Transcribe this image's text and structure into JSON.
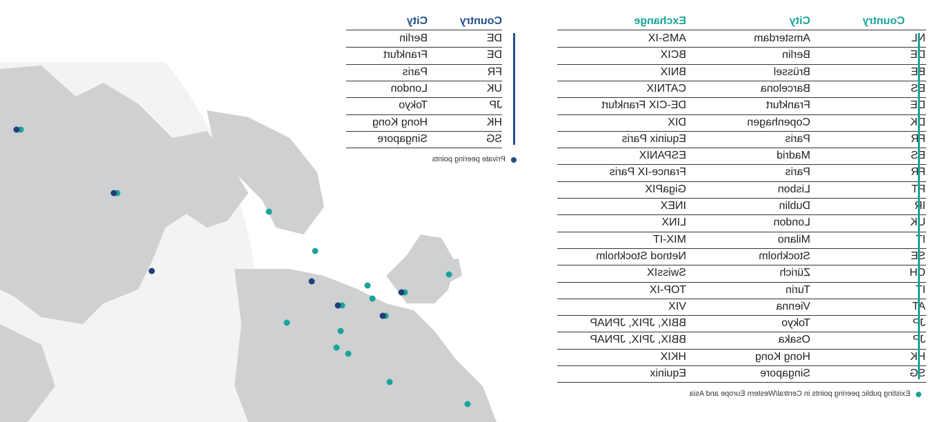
{
  "public_table": {
    "headers": [
      "Country",
      "City",
      "Exchange"
    ],
    "rows": [
      [
        "NL",
        "Amsterdam",
        "AMS-IX"
      ],
      [
        "DE",
        "Berlin",
        "BCIX"
      ],
      [
        "BE",
        "Brüssel",
        "BNIX"
      ],
      [
        "ES",
        "Barcelona",
        "CATNIX"
      ],
      [
        "DE",
        "Frankfurt",
        "DE-CIX Frankfurt"
      ],
      [
        "DK",
        "Copenhagen",
        "DIX"
      ],
      [
        "FR",
        "Paris",
        "Equinix Paris"
      ],
      [
        "ES",
        "Madrid",
        "ESPANIX"
      ],
      [
        "FR",
        "Paris",
        "France-IX Paris"
      ],
      [
        "PT",
        "Lisbon",
        "GigaPIX"
      ],
      [
        "IR",
        "Dublin",
        "INEX"
      ],
      [
        "UK",
        "London",
        "LINX"
      ],
      [
        "IT",
        "Milano",
        "MIX-IT"
      ],
      [
        "SE",
        "Stockholm",
        "Netnod Stockholm"
      ],
      [
        "CH",
        "Zürich",
        "SwissIX"
      ],
      [
        "IT",
        "Turin",
        "TOP-IX"
      ],
      [
        "AT",
        "Vienna",
        "VIX"
      ],
      [
        "JP",
        "Tokyo",
        "BBIX, JPIX, JPNAP"
      ],
      [
        "JP",
        "Osaka",
        "BBIX, JPIX, JPNAP"
      ],
      [
        "HK",
        "Hong Kong",
        "HKIX"
      ],
      [
        "SG",
        "Singapore",
        "Equinix"
      ]
    ],
    "footnote": "Existing public peering points in Central/Western  Europe and Asia"
  },
  "private_table": {
    "headers": [
      "Country",
      "City"
    ],
    "rows": [
      [
        "DE",
        "Berlin"
      ],
      [
        "DE",
        "Frankfurt"
      ],
      [
        "FR",
        "Paris"
      ],
      [
        "UK",
        "London"
      ],
      [
        "JP",
        "Tokyo"
      ],
      [
        "HK",
        "Hong Kong"
      ],
      [
        "SG",
        "Singapore"
      ]
    ],
    "footnote": "Private peering points"
  }
}
